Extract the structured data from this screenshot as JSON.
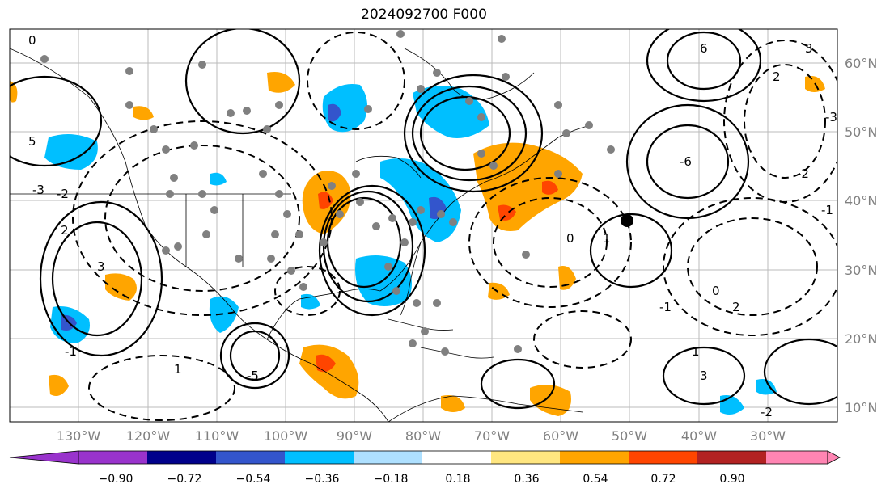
{
  "title": "2024092700 F000",
  "map": {
    "lon_labels": [
      "130°W",
      "120°W",
      "110°W",
      "100°W",
      "90°W",
      "80°W",
      "70°W",
      "60°W",
      "50°W",
      "40°W",
      "30°W"
    ],
    "lat_labels": [
      "60°N",
      "50°N",
      "40°N",
      "30°N",
      "20°N",
      "10°N"
    ],
    "contour_labels": [
      "0",
      "5",
      "3",
      "2",
      "-2",
      "-3",
      "-1",
      "1",
      "-5",
      "-6",
      "6",
      "0",
      "3",
      "2",
      "1",
      "-2",
      "-3",
      "-1",
      "0",
      "1",
      "2",
      "3",
      "-2",
      "-1"
    ],
    "station_marker": "black-dot"
  },
  "colorbar": {
    "labels": [
      "−0.90",
      "−0.72",
      "−0.54",
      "−0.36",
      "−0.18",
      "0.18",
      "0.36",
      "0.54",
      "0.72",
      "0.90"
    ],
    "colors": [
      "#9933cc",
      "#00008b",
      "#3355cc",
      "#00bfff",
      "#aee0ff",
      "#ffffff",
      "#ffe680",
      "#ffa500",
      "#ff4500",
      "#b22222",
      "#ff85b3"
    ]
  }
}
